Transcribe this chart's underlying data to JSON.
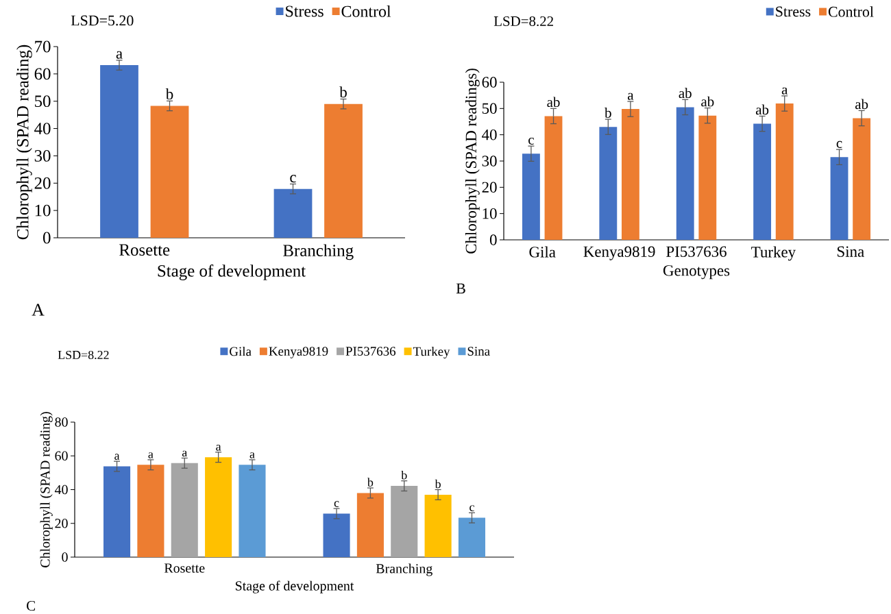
{
  "chart_data": [
    {
      "type": "bar",
      "categories": [
        "Rosette",
        "Branching"
      ],
      "xlabel": "Stage of development",
      "ylabel": "Chlorophyll (SPAD reading)",
      "ylim": [
        0,
        70
      ],
      "yticks": [
        0,
        10,
        20,
        30,
        40,
        50,
        60,
        70
      ],
      "legend": "top right",
      "annotations": [
        "LSD=5.20",
        "A"
      ],
      "series": [
        {
          "name": "Stress",
          "color": "#4472c4",
          "values": [
            63.2,
            17.9
          ],
          "errors": [
            1.8,
            1.8
          ],
          "value_labels": [
            "a",
            "c"
          ]
        },
        {
          "name": "Control",
          "color": "#ed7d31",
          "values": [
            48.3,
            49.0
          ],
          "errors": [
            1.8,
            1.8
          ],
          "value_labels": [
            "b",
            "b"
          ]
        }
      ]
    },
    {
      "type": "bar",
      "categories": [
        "Gila",
        "Kenya9819",
        "PI537636",
        "Turkey",
        "Sina"
      ],
      "xlabel": "Genotypes",
      "ylabel": "Chlorophyll (SPAD readings)",
      "ylim": [
        0,
        60
      ],
      "yticks": [
        0,
        10,
        20,
        30,
        40,
        50,
        60
      ],
      "legend": "top right",
      "annotations": [
        "LSD=8.22",
        "B"
      ],
      "series": [
        {
          "name": "Stress",
          "color": "#4472c4",
          "values": [
            32.8,
            43.0,
            50.5,
            44.2,
            31.5
          ],
          "errors": [
            2.9,
            2.9,
            2.9,
            2.9,
            2.9
          ],
          "value_labels": [
            "c",
            "b",
            "ab",
            "ab",
            "c"
          ]
        },
        {
          "name": "Control",
          "color": "#ed7d31",
          "values": [
            47.1,
            49.8,
            47.3,
            51.9,
            46.3
          ],
          "errors": [
            2.9,
            2.9,
            2.9,
            2.9,
            2.9
          ],
          "value_labels": [
            "ab",
            "a",
            "ab",
            "a",
            "ab"
          ]
        }
      ]
    },
    {
      "type": "bar",
      "categories": [
        "Rosette",
        "Branching"
      ],
      "xlabel": "Stage of development",
      "ylabel": "Chlorophyll (SPAD reading)",
      "ylim": [
        0,
        80
      ],
      "yticks": [
        0,
        20,
        40,
        60,
        80
      ],
      "legend": "top",
      "annotations": [
        "LSD=8.22",
        "C"
      ],
      "series": [
        {
          "name": "Gila",
          "color": "#4472c4",
          "values": [
            53.8,
            25.8
          ],
          "errors": [
            3.0,
            3.0
          ],
          "value_labels": [
            "a",
            "c"
          ]
        },
        {
          "name": "Kenya9819",
          "color": "#ed7d31",
          "values": [
            54.7,
            38.0
          ],
          "errors": [
            3.0,
            3.0
          ],
          "value_labels": [
            "a",
            "b"
          ]
        },
        {
          "name": "PI537636",
          "color": "#a5a5a5",
          "values": [
            55.7,
            42.2
          ],
          "errors": [
            3.0,
            3.0
          ],
          "value_labels": [
            "a",
            "b"
          ]
        },
        {
          "name": "Turkey",
          "color": "#ffc000",
          "values": [
            59.2,
            37.0
          ],
          "errors": [
            3.0,
            3.0
          ],
          "value_labels": [
            "a",
            "b"
          ]
        },
        {
          "name": "Sina",
          "color": "#5b9bd5",
          "values": [
            54.7,
            23.3
          ],
          "errors": [
            3.0,
            3.0
          ],
          "value_labels": [
            "a",
            "c"
          ]
        }
      ]
    }
  ]
}
